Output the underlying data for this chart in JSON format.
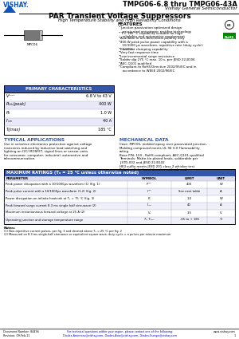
{
  "title_part": "TMPG06-6.8 thru TMPG06-43A",
  "title_company": "Vishay General Semiconductor",
  "product_title": "PAR Transient Voltage Suppressors",
  "product_subtitle": "High Temperature Stability and High Reliability Conditions",
  "features_title": "FEATURES",
  "bg_color": "#ffffff",
  "primary_char_title": "PRIMARY CHARACTERISTICS",
  "typical_apps_title": "TYPICAL APPLICATIONS",
  "mech_title": "MECHANICAL DATA",
  "max_ratings_title": "MAXIMUM RATINGS",
  "footer_doc": "Document Number: 84494",
  "footer_rev": "Revision: 09-Feb-11",
  "footer_web": "www.vishay.com",
  "footer_page": "1"
}
